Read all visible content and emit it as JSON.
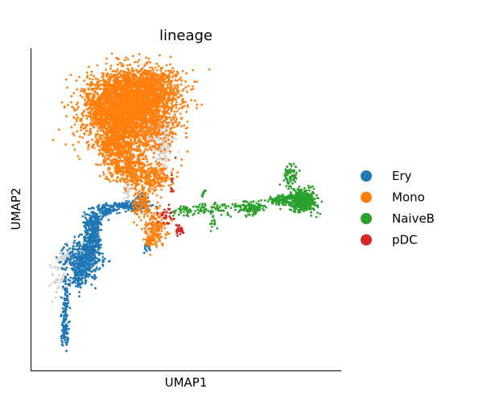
{
  "chart_data": {
    "type": "scatter",
    "title": "lineage",
    "xlabel": "UMAP1",
    "ylabel": "UMAP2",
    "xlim": [
      0,
      10
    ],
    "ylim": [
      0,
      10
    ],
    "grid": false,
    "legend_placement": "right",
    "unlabeled_color": "#d3d3d3",
    "series": [
      {
        "name": "Ery",
        "color": "#1f77b4",
        "clusters": [
          {
            "x": 0.8,
            "y": 0.8,
            "sx": 0.06,
            "sy": 0.2,
            "n": 60
          },
          {
            "x": 0.8,
            "y": 1.5,
            "sx": 0.06,
            "sy": 0.25,
            "n": 50
          },
          {
            "x": 0.85,
            "y": 2.2,
            "sx": 0.07,
            "sy": 0.25,
            "n": 45
          },
          {
            "x": 1.3,
            "y": 2.7,
            "sx": 0.12,
            "sy": 0.18,
            "n": 80
          },
          {
            "x": 1.45,
            "y": 3.3,
            "sx": 0.3,
            "sy": 0.32,
            "n": 420
          },
          {
            "x": 1.75,
            "y": 3.9,
            "sx": 0.18,
            "sy": 0.22,
            "n": 160
          },
          {
            "x": 1.8,
            "y": 4.55,
            "sx": 0.16,
            "sy": 0.22,
            "n": 180
          },
          {
            "x": 2.2,
            "y": 4.98,
            "sx": 0.18,
            "sy": 0.09,
            "n": 80
          },
          {
            "x": 2.8,
            "y": 5.12,
            "sx": 0.22,
            "sy": 0.06,
            "n": 90
          },
          {
            "x": 3.35,
            "y": 5.1,
            "sx": 0.22,
            "sy": 0.12,
            "n": 80
          },
          {
            "x": 3.5,
            "y": 5.4,
            "sx": 0.1,
            "sy": 0.1,
            "n": 25
          },
          {
            "x": 3.65,
            "y": 3.75,
            "sx": 0.06,
            "sy": 0.1,
            "n": 20
          }
        ]
      },
      {
        "name": "Mono",
        "color": "#ff7f0e",
        "clusters": [
          {
            "x": 3.1,
            "y": 8.3,
            "sx": 0.75,
            "sy": 0.65,
            "n": 2800
          },
          {
            "x": 2.3,
            "y": 8.45,
            "sx": 0.4,
            "sy": 0.5,
            "n": 600
          },
          {
            "x": 3.6,
            "y": 9.05,
            "sx": 0.6,
            "sy": 0.35,
            "n": 900
          },
          {
            "x": 2.65,
            "y": 7.15,
            "sx": 0.35,
            "sy": 0.35,
            "n": 350
          },
          {
            "x": 2.95,
            "y": 6.35,
            "sx": 0.35,
            "sy": 0.25,
            "n": 300
          },
          {
            "x": 3.85,
            "y": 6.05,
            "sx": 0.35,
            "sy": 0.22,
            "n": 220
          },
          {
            "x": 3.5,
            "y": 5.2,
            "sx": 0.16,
            "sy": 0.25,
            "n": 120
          },
          {
            "x": 3.95,
            "y": 4.45,
            "sx": 0.2,
            "sy": 0.3,
            "n": 160
          },
          {
            "x": 3.8,
            "y": 3.95,
            "sx": 0.12,
            "sy": 0.12,
            "n": 40
          }
        ]
      },
      {
        "name": "NaiveB",
        "color": "#2ca02c",
        "clusters": [
          {
            "x": 9.05,
            "y": 5.3,
            "sx": 0.25,
            "sy": 0.18,
            "n": 450
          },
          {
            "x": 8.65,
            "y": 6.15,
            "sx": 0.12,
            "sy": 0.2,
            "n": 80
          },
          {
            "x": 8.3,
            "y": 5.3,
            "sx": 0.25,
            "sy": 0.09,
            "n": 90
          },
          {
            "x": 7.3,
            "y": 5.05,
            "sx": 0.22,
            "sy": 0.12,
            "n": 110
          },
          {
            "x": 6.2,
            "y": 5.05,
            "sx": 0.45,
            "sy": 0.1,
            "n": 60
          },
          {
            "x": 5.05,
            "y": 4.95,
            "sx": 0.35,
            "sy": 0.1,
            "n": 60
          },
          {
            "x": 5.6,
            "y": 5.55,
            "sx": 0.05,
            "sy": 0.06,
            "n": 10
          },
          {
            "x": 5.95,
            "y": 4.5,
            "sx": 0.07,
            "sy": 0.12,
            "n": 12
          }
        ]
      },
      {
        "name": "pDC",
        "color": "#d62728",
        "clusters": [
          {
            "x": 4.3,
            "y": 4.8,
            "sx": 0.15,
            "sy": 0.15,
            "n": 30
          },
          {
            "x": 4.75,
            "y": 4.3,
            "sx": 0.08,
            "sy": 0.08,
            "n": 30
          },
          {
            "x": 4.5,
            "y": 6.0,
            "sx": 0.05,
            "sy": 0.3,
            "n": 10
          }
        ]
      }
    ],
    "unlabeled_clusters": [
      {
        "x": 4.2,
        "y": 7.3,
        "sx": 0.2,
        "sy": 0.5,
        "n": 160
      },
      {
        "x": 3.8,
        "y": 7.7,
        "sx": 0.18,
        "sy": 0.22,
        "n": 50
      },
      {
        "x": 0.55,
        "y": 2.7,
        "sx": 0.12,
        "sy": 0.35,
        "n": 50
      },
      {
        "x": 0.9,
        "y": 3.4,
        "sx": 0.1,
        "sy": 0.25,
        "n": 40
      },
      {
        "x": 2.95,
        "y": 5.7,
        "sx": 0.08,
        "sy": 0.2,
        "n": 30
      }
    ]
  }
}
